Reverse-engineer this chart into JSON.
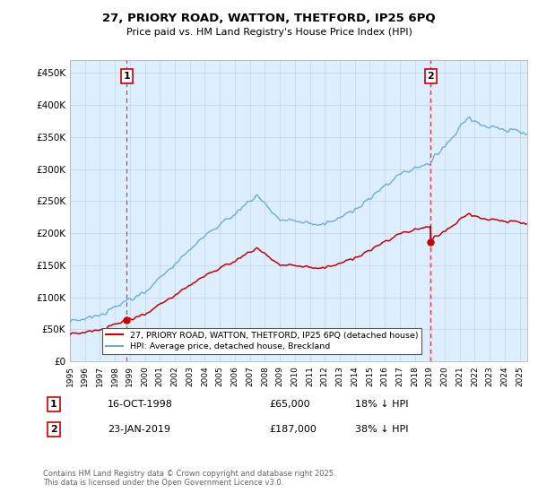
{
  "title": "27, PRIORY ROAD, WATTON, THETFORD, IP25 6PQ",
  "subtitle": "Price paid vs. HM Land Registry's House Price Index (HPI)",
  "yticks": [
    0,
    50000,
    100000,
    150000,
    200000,
    250000,
    300000,
    350000,
    400000,
    450000
  ],
  "ylim": [
    0,
    470000
  ],
  "xlim_start": 1995.0,
  "xlim_end": 2025.5,
  "transaction1_date": 1998.79,
  "transaction1_price": 65000,
  "transaction2_date": 2019.06,
  "transaction2_price": 187000,
  "hpi_line_color": "#6aaed6",
  "price_line_color": "#cc0000",
  "vline_color": "#ee3333",
  "marker_color": "#cc0000",
  "plot_bg_color": "#ddeeff",
  "legend_label_price": "27, PRIORY ROAD, WATTON, THETFORD, IP25 6PQ (detached house)",
  "legend_label_hpi": "HPI: Average price, detached house, Breckland",
  "footnote": "Contains HM Land Registry data © Crown copyright and database right 2025.\nThis data is licensed under the Open Government Licence v3.0.",
  "table_row1": [
    "1",
    "16-OCT-1998",
    "£65,000",
    "18% ↓ HPI"
  ],
  "table_row2": [
    "2",
    "23-JAN-2019",
    "£187,000",
    "38% ↓ HPI"
  ],
  "bg_color": "#ffffff",
  "grid_color": "#c8d8e8"
}
